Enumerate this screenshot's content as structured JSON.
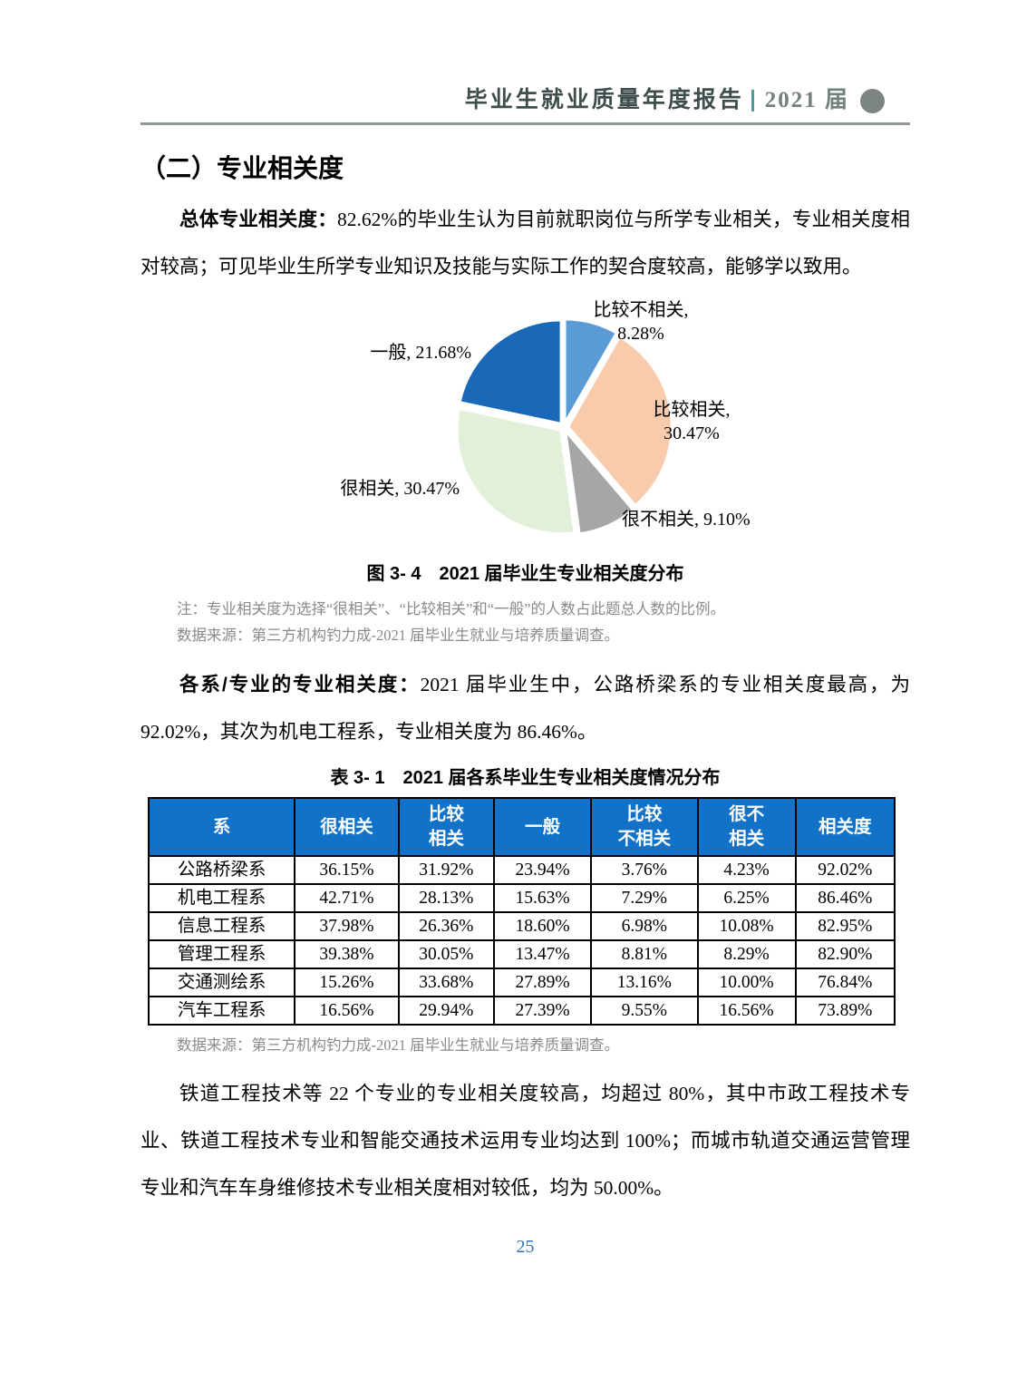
{
  "header": {
    "title": "毕业生就业质量年度报告",
    "cohort": "2021 届"
  },
  "section": {
    "title": "（二）专业相关度"
  },
  "para1": {
    "lead": "总体专业相关度：",
    "text": "82.62%的毕业生认为目前就职岗位与所学专业相关，专业相关度相对较高；可见毕业生所学专业知识及技能与实际工作的契合度较高，能够学以致用。"
  },
  "chart_data": {
    "type": "pie",
    "title": "2021 届毕业生专业相关度分布",
    "start_angle_deg": 0,
    "direction": "clockwise",
    "value_suffix": "%",
    "slices": [
      {
        "label": "比较不相关",
        "value": 8.28,
        "color": "#5B9BD5"
      },
      {
        "label": "比较相关",
        "value": 30.47,
        "color": "#F8CBAD"
      },
      {
        "label": "很不相关",
        "value": 9.1,
        "color": "#A6A6A6"
      },
      {
        "label": "很相关",
        "value": 30.47,
        "color": "#E2EFD9"
      },
      {
        "label": "一般",
        "value": 21.68,
        "color": "#1A69B9"
      }
    ]
  },
  "figure": {
    "caption": "图 3- 4　2021 届毕业生专业相关度分布",
    "note1": "注：专业相关度为选择“很相关”、“比较相关”和“一般”的人数占此题总人数的比例。",
    "note2": "数据来源：第三方机构钓力成-2021 届毕业生就业与培养质量调查。"
  },
  "para2": {
    "lead": "各系/专业的专业相关度：",
    "text": "2021 届毕业生中，公路桥梁系的专业相关度最高，为 92.02%，其次为机电工程系，专业相关度为 86.46%。"
  },
  "table": {
    "caption": "表 3- 1　2021 届各系毕业生专业相关度情况分布",
    "headers": [
      "系",
      "很相关",
      "比较\n相关",
      "一般",
      "比较\n不相关",
      "很不\n相关",
      "相关度"
    ],
    "rows": [
      [
        "公路桥梁系",
        "36.15%",
        "31.92%",
        "23.94%",
        "3.76%",
        "4.23%",
        "92.02%"
      ],
      [
        "机电工程系",
        "42.71%",
        "28.13%",
        "15.63%",
        "7.29%",
        "6.25%",
        "86.46%"
      ],
      [
        "信息工程系",
        "37.98%",
        "26.36%",
        "18.60%",
        "6.98%",
        "10.08%",
        "82.95%"
      ],
      [
        "管理工程系",
        "39.38%",
        "30.05%",
        "13.47%",
        "8.81%",
        "8.29%",
        "82.90%"
      ],
      [
        "交通测绘系",
        "15.26%",
        "33.68%",
        "27.89%",
        "13.16%",
        "10.00%",
        "76.84%"
      ],
      [
        "汽车工程系",
        "16.56%",
        "29.94%",
        "27.39%",
        "9.55%",
        "16.56%",
        "73.89%"
      ]
    ],
    "note": "数据来源：第三方机构钓力成-2021 届毕业生就业与培养质量调查。"
  },
  "para3": {
    "text": "铁道工程技术等 22 个专业的专业相关度较高，均超过 80%，其中市政工程技术专业、铁道工程技术专业和智能交通技术运用专业均达到 100%；而城市轨道交通运营管理专业和汽车车身维修技术专业相关度相对较低，均为 50.00%。"
  },
  "footer": {
    "page_number": "25"
  },
  "colors": {
    "table_header_bg": "#1272C8",
    "table_header_text": "#FFFFFF",
    "note_gray": "#8A8A8A",
    "page_number": "#2E74B0",
    "header_text": "#3F4E4C",
    "header_cohort": "#72807E",
    "header_circle": "#7C8584",
    "header_separator": "#4F9A94",
    "header_rule": "#8E9696"
  }
}
